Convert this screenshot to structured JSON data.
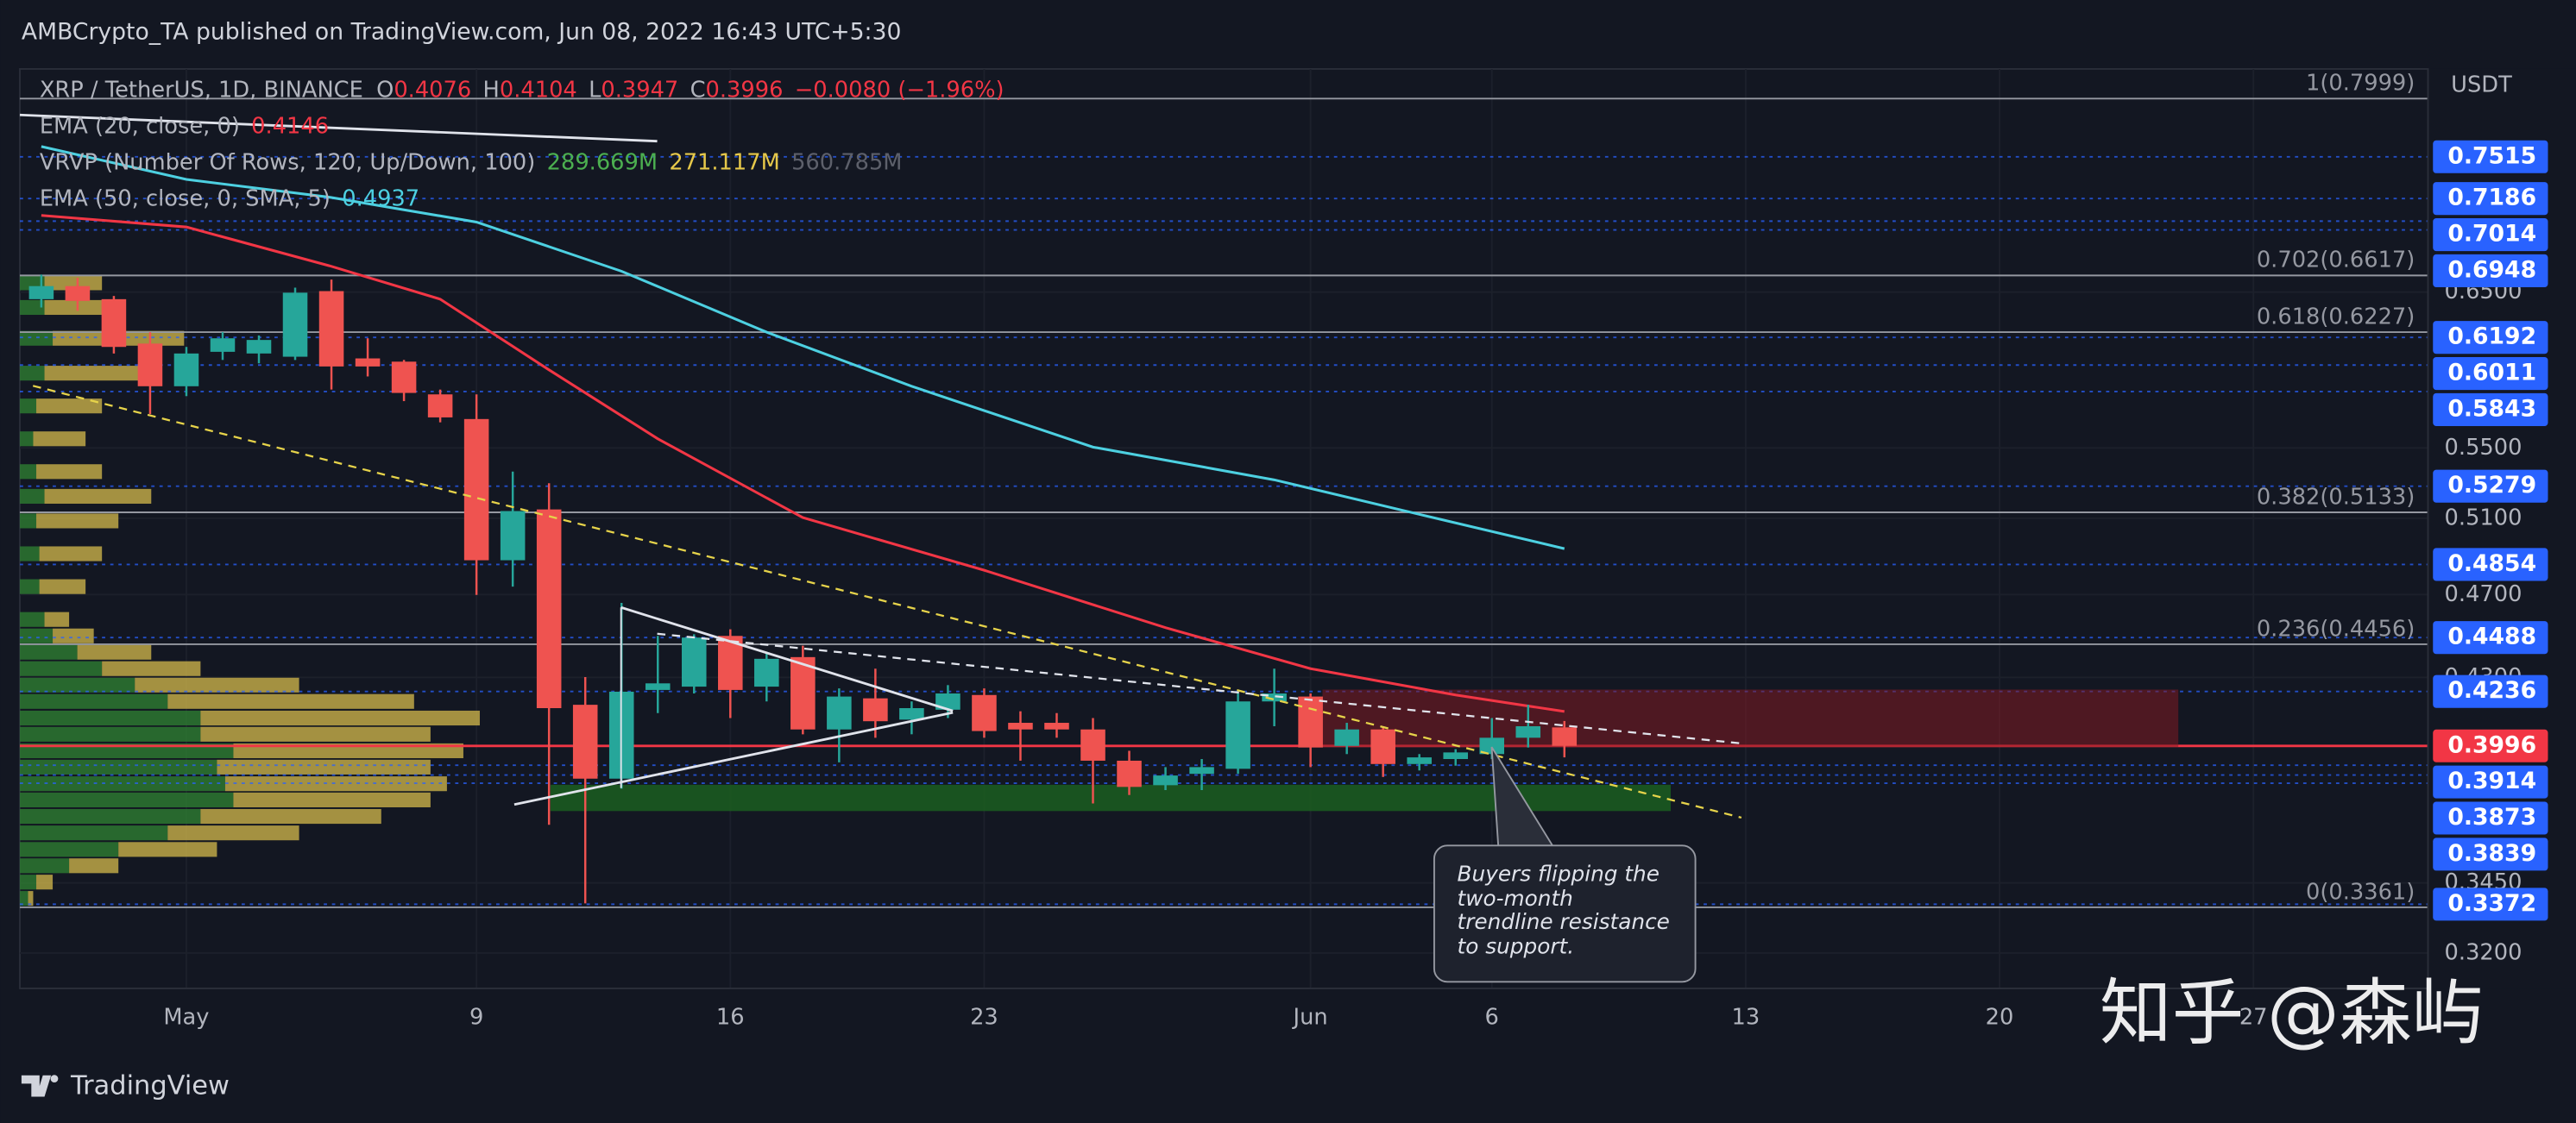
{
  "header": {
    "published": "AMBCrypto_TA published on TradingView.com, Jun 08, 2022 16:43 UTC+5:30",
    "logo": "TradingView",
    "watermark": "知乎 @森屿"
  },
  "chart_data": {
    "type": "candlestick",
    "legend": {
      "symbol": "XRP / TetherUS, 1D, BINANCE",
      "ohlc_keys": [
        "O",
        "H",
        "L",
        "C"
      ],
      "change": "−0.0080 (−1.96%)"
    },
    "y_unit": "USDT",
    "log_scale": true,
    "grid": true,
    "up_color": "#26a69a",
    "down_color": "#ef5350",
    "x": [
      "Apr 27",
      "Apr 28",
      "Apr 29",
      "Apr 30",
      "May 1",
      "May 2",
      "May 3",
      "May 4",
      "May 5",
      "May 6",
      "May 7",
      "May 8",
      "May 9",
      "May 10",
      "May 11",
      "May 12",
      "May 13",
      "May 14",
      "May 15",
      "May 16",
      "May 17",
      "May 18",
      "May 19",
      "May 20",
      "May 21",
      "May 22",
      "May 23",
      "May 24",
      "May 25",
      "May 26",
      "May 27",
      "May 28",
      "May 29",
      "May 30",
      "May 31",
      "Jun 1",
      "Jun 2",
      "Jun 3",
      "Jun 4",
      "Jun 5",
      "Jun 6",
      "Jun 7",
      "Jun 8"
    ],
    "open": [
      0.6451,
      0.6542,
      0.6451,
      0.6151,
      0.5876,
      0.6097,
      0.6086,
      0.6065,
      0.6507,
      0.6054,
      0.6033,
      0.5825,
      0.5673,
      0.4876,
      0.5149,
      0.4176,
      0.3858,
      0.4243,
      0.4258,
      0.4496,
      0.4258,
      0.4395,
      0.4067,
      0.4205,
      0.411,
      0.4154,
      0.422,
      0.4096,
      0.4096,
      0.4067,
      0.3933,
      0.3831,
      0.3878,
      0.3899,
      0.4191,
      0.4213,
      0.3996,
      0.4067,
      0.3919,
      0.394,
      0.3961,
      0.4031,
      0.4076
    ],
    "high": [
      0.6623,
      0.66,
      0.6473,
      0.6227,
      0.6129,
      0.6227,
      0.6205,
      0.6531,
      0.6588,
      0.6186,
      0.6044,
      0.5855,
      0.5825,
      0.5362,
      0.5296,
      0.4302,
      0.4658,
      0.4496,
      0.4504,
      0.4528,
      0.442,
      0.4449,
      0.425,
      0.4341,
      0.4191,
      0.4265,
      0.425,
      0.4147,
      0.4139,
      0.4117,
      0.3975,
      0.3906,
      0.394,
      0.4227,
      0.4341,
      0.4227,
      0.4096,
      0.4081,
      0.3961,
      0.3982,
      0.4117,
      0.4176,
      0.4104
    ],
    "low": [
      0.6394,
      0.6371,
      0.6086,
      0.5703,
      0.5814,
      0.6044,
      0.6022,
      0.6044,
      0.5855,
      0.5938,
      0.5783,
      0.5653,
      0.4698,
      0.474,
      0.3672,
      0.3375,
      0.3817,
      0.4139,
      0.4227,
      0.4117,
      0.4191,
      0.4046,
      0.3926,
      0.4031,
      0.4046,
      0.4117,
      0.4031,
      0.3933,
      0.4031,
      0.3757,
      0.3791,
      0.3811,
      0.3811,
      0.3878,
      0.4081,
      0.3906,
      0.3961,
      0.3865,
      0.3892,
      0.3912,
      0.394,
      0.3989,
      0.3947
    ],
    "close": [
      0.6542,
      0.6439,
      0.6129,
      0.5876,
      0.6086,
      0.6186,
      0.6175,
      0.6496,
      0.6002,
      0.6002,
      0.5834,
      0.5683,
      0.4876,
      0.514,
      0.4161,
      0.3858,
      0.4235,
      0.4273,
      0.4488,
      0.4243,
      0.4387,
      0.4067,
      0.4213,
      0.4103,
      0.4161,
      0.4227,
      0.406,
      0.4067,
      0.4067,
      0.3933,
      0.3824,
      0.3871,
      0.3906,
      0.4191,
      0.4227,
      0.3989,
      0.4067,
      0.3919,
      0.3947,
      0.3968,
      0.4031,
      0.4081,
      0.3996
    ],
    "lines": [
      {
        "name": "EMA (20, close, 0)",
        "color": "#f23645",
        "x": [
          "Apr 27",
          "May 1",
          "May 5",
          "May 8",
          "May 11",
          "May 14",
          "May 18",
          "May 23",
          "May 28",
          "Jun 1",
          "Jun 5",
          "Jun 8"
        ],
        "values": [
          0.7057,
          0.697,
          0.6682,
          0.6451,
          0.598,
          0.5554,
          0.5104,
          0.4824,
          0.4536,
          0.4341,
          0.422,
          0.4146
        ]
      },
      {
        "name": "EMA (50, close, 0, SMA, 5)",
        "color": "#4dd0e1",
        "x": [
          "Apr 27",
          "May 1",
          "May 5",
          "May 9",
          "May 13",
          "May 17",
          "May 21",
          "May 26",
          "May 31",
          "Jun 4",
          "Jun 8"
        ],
        "values": [
          0.7598,
          0.7335,
          0.7194,
          0.7007,
          0.6647,
          0.6227,
          0.5876,
          0.5505,
          0.5315,
          0.5122,
          0.4937
        ]
      }
    ],
    "volume_profile": {
      "name": "VRVP (Number Of Rows, 120, Up/Down, 100)",
      "legend_values": [
        "289.669M",
        "271.117M",
        "560.785M"
      ],
      "up_color": "#2e7d32",
      "down_color": "#c9b04a",
      "prices": [
        0.3393,
        0.3453,
        0.3514,
        0.3576,
        0.364,
        0.3705,
        0.3771,
        0.3837,
        0.3906,
        0.3975,
        0.4046,
        0.4117,
        0.4191,
        0.4265,
        0.4341,
        0.4418,
        0.4496,
        0.4576,
        0.474,
        0.491,
        0.5086,
        0.5222,
        0.5362,
        0.5554,
        0.5753,
        0.5959,
        0.6186,
        0.6394,
        0.6565
      ],
      "up": [
        0.8,
        1.6,
        4.8,
        9.6,
        14.4,
        17.6,
        20.8,
        20.0,
        19.2,
        20.8,
        17.6,
        17.6,
        14.4,
        11.2,
        8.0,
        5.6,
        3.2,
        2.4,
        1.9,
        1.9,
        1.6,
        2.4,
        1.6,
        1.3,
        1.6,
        2.4,
        3.2,
        2.4,
        2.4
      ],
      "down": [
        0.5,
        1.6,
        4.8,
        9.6,
        12.8,
        17.6,
        19.2,
        21.6,
        20.8,
        22.4,
        22.4,
        27.2,
        24.0,
        16.0,
        9.6,
        7.2,
        4.0,
        2.4,
        4.5,
        6.1,
        8.0,
        10.4,
        6.4,
        5.1,
        6.4,
        10.4,
        12.8,
        7.2,
        5.6
      ]
    },
    "fib_levels": [
      {
        "value": 0.7999,
        "label": "1(0.7999)"
      },
      {
        "value": 0.6617,
        "label": "0.702(0.6617)"
      },
      {
        "value": 0.6227,
        "label": "0.618(0.6227)"
      },
      {
        "value": 0.5133,
        "label": "0.382(0.5133)"
      },
      {
        "value": 0.4456,
        "label": "0.236(0.4456)"
      },
      {
        "value": 0.3361,
        "label": "0(0.3361)"
      }
    ],
    "price_levels": [
      0.7515,
      0.7186,
      0.7014,
      0.6948,
      0.6192,
      0.6011,
      0.5843,
      0.5279,
      0.4854,
      0.4488,
      0.4236,
      0.3914,
      0.3873,
      0.3839,
      0.3372
    ],
    "level_color": "#2962ff",
    "last_price": 0.3996,
    "last_price_color": "#f23645",
    "xlim": [
      "Apr 26",
      "Jul 1"
    ],
    "xticks": [
      {
        "value": "May 1",
        "label": "May"
      },
      {
        "value": "May 9",
        "label": "9"
      },
      {
        "value": "May 16",
        "label": "16"
      },
      {
        "value": "May 23",
        "label": "23"
      },
      {
        "value": "Jun 1",
        "label": "Jun"
      },
      {
        "value": "Jun 6",
        "label": "6"
      },
      {
        "value": "Jun 13",
        "label": "13"
      },
      {
        "value": "Jun 20",
        "label": "20"
      },
      {
        "value": "Jun 27",
        "label": "27"
      }
    ],
    "ylim": [
      0.3092,
      0.8257
    ],
    "yticks": [
      {
        "value": 0.65,
        "label": "0.6500"
      },
      {
        "value": 0.55,
        "label": "0.5500"
      },
      {
        "value": 0.51,
        "label": "0.5100"
      },
      {
        "value": 0.47,
        "label": "0.4700"
      },
      {
        "value": 0.43,
        "label": "0.4300"
      },
      {
        "value": 0.345,
        "label": "0.3450"
      },
      {
        "value": 0.32,
        "label": "0.3200"
      }
    ],
    "annotation": {
      "lines": [
        "Buyers flipping the",
        "two-month",
        "trendline resistance",
        "to support."
      ]
    }
  }
}
